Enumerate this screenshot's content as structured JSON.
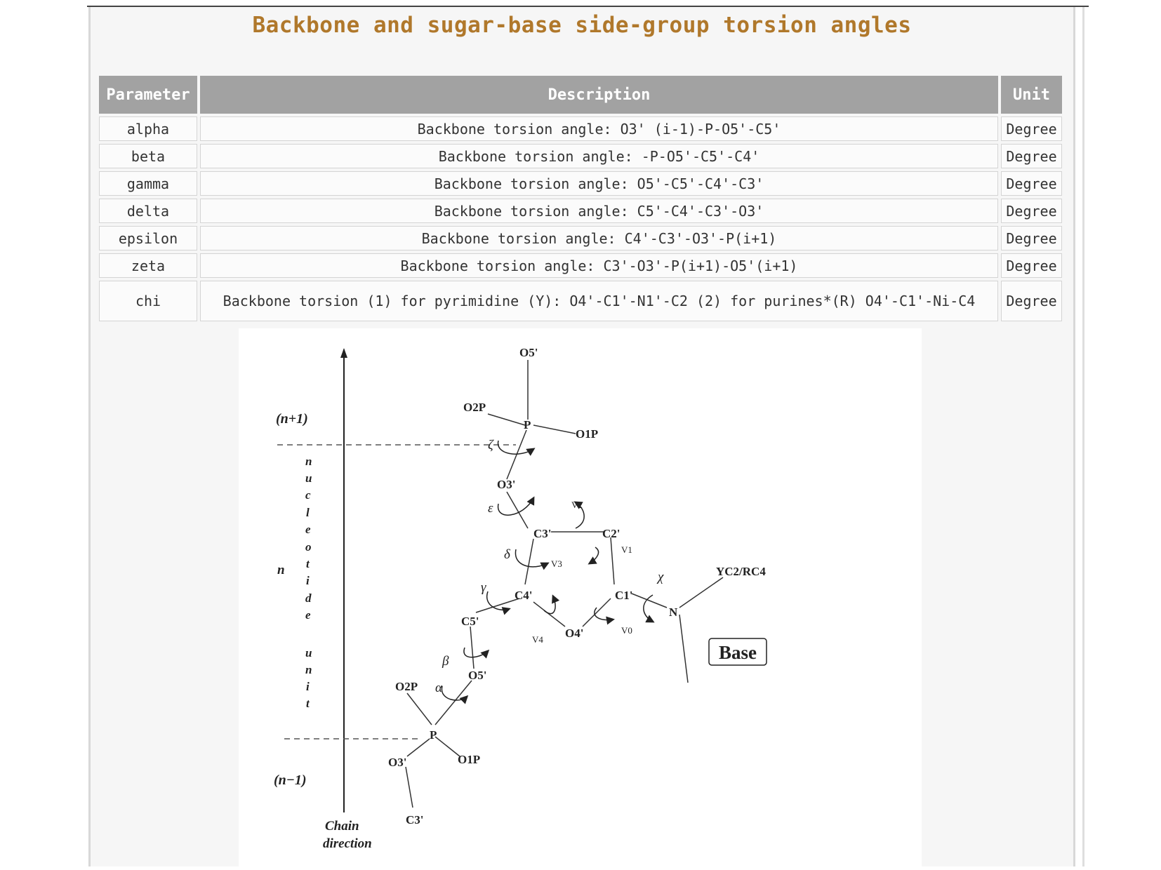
{
  "page": {
    "title": "Backbone and sugar-base side-group torsion angles"
  },
  "table": {
    "headers": [
      "Parameter",
      "Description",
      "Unit"
    ],
    "rows": [
      {
        "parameter": "alpha",
        "description": "Backbone torsion angle: O3' (i-1)-P-O5'-C5'",
        "unit": "Degree"
      },
      {
        "parameter": "beta",
        "description": "Backbone torsion angle: -P-O5'-C5'-C4'",
        "unit": "Degree"
      },
      {
        "parameter": "gamma",
        "description": "Backbone torsion angle: O5'-C5'-C4'-C3'",
        "unit": "Degree"
      },
      {
        "parameter": "delta",
        "description": "Backbone torsion angle: C5'-C4'-C3'-O3'",
        "unit": "Degree"
      },
      {
        "parameter": "epsilon",
        "description": "Backbone torsion angle: C4'-C3'-O3'-P(i+1)",
        "unit": "Degree"
      },
      {
        "parameter": "zeta",
        "description": "Backbone torsion angle: C3'-O3'-P(i+1)-O5'(i+1)",
        "unit": "Degree"
      },
      {
        "parameter": "chi",
        "description": "Backbone torsion (1) for pyrimidine (Y): O4'-C1'-N1'-C2 (2) for purines*(R) O4'-C1'-Ni-C4",
        "unit": "Degree"
      }
    ]
  },
  "figure": {
    "n_plus_1": "(n+1)",
    "n_minus_1": "(n−1)",
    "n_label": "n",
    "unit_letters": [
      "n",
      "u",
      "c",
      "l",
      "e",
      "o",
      "t",
      "i",
      "d",
      "e",
      "",
      "u",
      "n",
      "i",
      "t"
    ],
    "chain_direction": [
      "Chain",
      "direction"
    ],
    "atoms": {
      "O5_top": "O5'",
      "O2P_top": "O2P",
      "P_top": "P",
      "O1P_top": "O1P",
      "O3": "O3'",
      "C3": "C3'",
      "C2": "C2'",
      "C4": "C4'",
      "C1": "C1'",
      "O4": "O4'",
      "C5": "C5'",
      "O5": "O5'",
      "O2P_bot": "O2P",
      "P_bot": "P",
      "O1P_bot": "O1P",
      "O3_bot": "O3'",
      "C3_bot": "C3'",
      "N": "N",
      "YC": "YC2/RC4"
    },
    "greek": {
      "zeta": "ζ",
      "epsilon": "ε",
      "delta": "δ",
      "gamma": "γ",
      "beta": "β",
      "alpha": "α",
      "chi": "χ",
      "v0": "V0",
      "v1": "V1",
      "v2": "V2",
      "v3": "V3",
      "v4": "V4"
    },
    "base_label": "Base"
  }
}
